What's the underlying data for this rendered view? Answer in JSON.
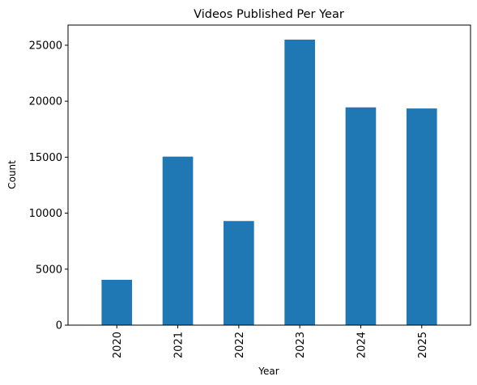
{
  "chart_data": {
    "type": "bar",
    "title": "Videos Published Per Year",
    "xlabel": "Year",
    "ylabel": "Count",
    "categories": [
      "2020",
      "2021",
      "2022",
      "2023",
      "2024",
      "2025"
    ],
    "values": [
      4050,
      15050,
      9300,
      25500,
      19450,
      19350
    ],
    "ylim": [
      0,
      26800
    ],
    "yticks": [
      0,
      5000,
      10000,
      15000,
      20000,
      25000
    ],
    "bar_color": "#1f77b4",
    "grid": false,
    "legend": "none"
  }
}
